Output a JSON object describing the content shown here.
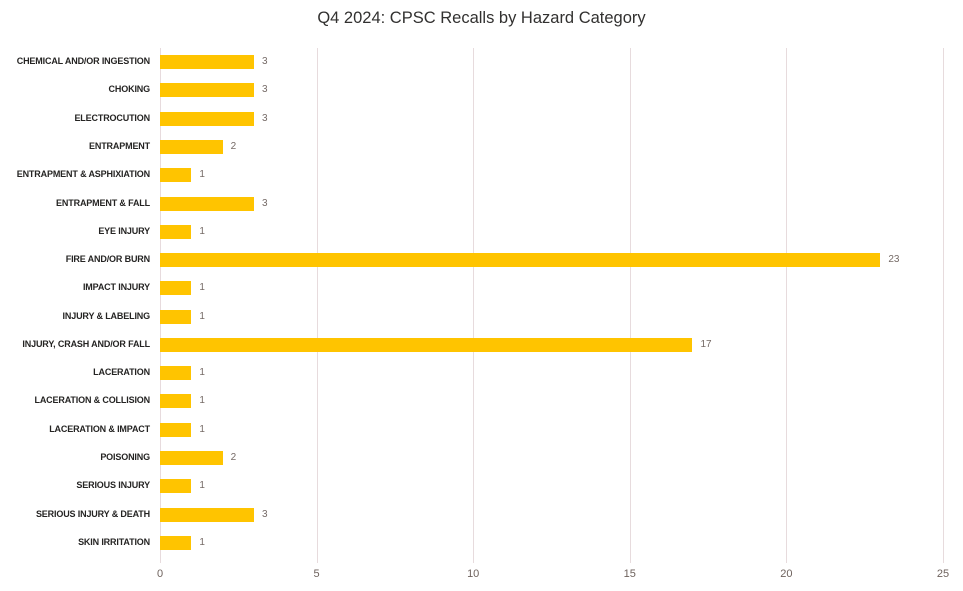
{
  "chart_data": {
    "type": "bar",
    "orientation": "horizontal",
    "title": "Q4 2024: CPSC Recalls by Hazard Category",
    "categories": [
      "CHEMICAL AND/OR INGESTION",
      "CHOKING",
      "ELECTROCUTION",
      "ENTRAPMENT",
      "ENTRAPMENT & ASPHIXIATION",
      "ENTRAPMENT & FALL",
      "EYE INJURY",
      "FIRE AND/OR BURN",
      "IMPACT INJURY",
      "INJURY & LABELING",
      "INJURY, CRASH AND/OR FALL",
      "LACERATION",
      "LACERATION & COLLISION",
      "LACERATION & IMPACT",
      "POISONING",
      "SERIOUS INJURY",
      "SERIOUS INJURY & DEATH",
      "SKIN IRRITATION"
    ],
    "values": [
      3,
      3,
      3,
      2,
      1,
      3,
      1,
      23,
      1,
      1,
      17,
      1,
      1,
      1,
      2,
      1,
      3,
      1
    ],
    "data_labels": [
      "3",
      "3",
      "3",
      "2",
      "1",
      "3",
      "1",
      "23",
      "1",
      "1",
      "17",
      "1",
      "1",
      "1",
      "2",
      "1",
      "3",
      "1"
    ],
    "xlabel": "",
    "ylabel": "",
    "xlim": [
      0,
      25
    ],
    "xticks": [
      0,
      5,
      10,
      15,
      20,
      25
    ],
    "xtick_labels": [
      "0",
      "5",
      "10",
      "15",
      "20",
      "25"
    ],
    "grid": "vertical",
    "legend": "none",
    "colors": {
      "bar": "#FFC400",
      "gridline": "#E7DBDD",
      "tick_label": "#6E625D",
      "value_label": "#756A66",
      "category_label": "#252423",
      "title": "#323130",
      "background": "#FFFFFF"
    }
  }
}
